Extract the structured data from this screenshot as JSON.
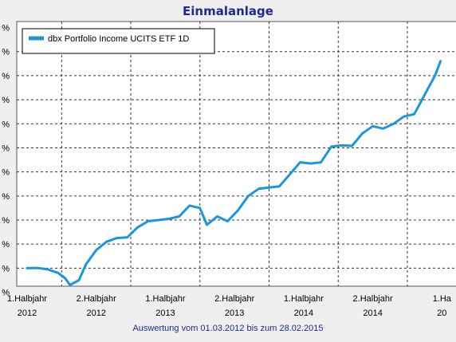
{
  "chart_data": {
    "type": "line",
    "title": "Einmalanlage",
    "footnote": "Auswertung vom 01.03.2012 bis zum 28.02.2015",
    "legend": {
      "placement": "top-left",
      "entries": [
        "dbx Portfolio Income UCITS ETF 1D"
      ]
    },
    "x_ticks": [
      [
        "1.Halbjahr",
        "2012"
      ],
      [
        "2.Halbjahr",
        "2012"
      ],
      [
        "1.Halbjahr",
        "2013"
      ],
      [
        "2.Halbjahr",
        "2013"
      ],
      [
        "1.Halbjahr",
        "2014"
      ],
      [
        "2.Halbjahr",
        "2014"
      ],
      [
        "1.Ha",
        "20"
      ]
    ],
    "y_ticks": [
      "%",
      "%",
      "%",
      "%",
      "%",
      "%",
      "%",
      "%",
      "%",
      "%",
      "%",
      "%"
    ],
    "grid": true,
    "series": [
      {
        "name": "dbx Portfolio Income UCITS ETF 1D",
        "color": "#1a96e0",
        "points": [
          [
            0.0,
            1.0
          ],
          [
            0.15,
            1.01
          ],
          [
            0.3,
            0.95
          ],
          [
            0.45,
            0.8
          ],
          [
            0.55,
            0.58
          ],
          [
            0.62,
            0.3
          ],
          [
            0.75,
            0.5
          ],
          [
            0.85,
            1.15
          ],
          [
            1.0,
            1.75
          ],
          [
            1.15,
            2.1
          ],
          [
            1.3,
            2.25
          ],
          [
            1.45,
            2.28
          ],
          [
            1.6,
            2.7
          ],
          [
            1.75,
            2.95
          ],
          [
            1.9,
            3.0
          ],
          [
            2.05,
            3.05
          ],
          [
            2.2,
            3.15
          ],
          [
            2.35,
            3.6
          ],
          [
            2.5,
            3.5
          ],
          [
            2.6,
            2.8
          ],
          [
            2.75,
            3.15
          ],
          [
            2.9,
            2.95
          ],
          [
            3.05,
            3.4
          ],
          [
            3.2,
            4.0
          ],
          [
            3.35,
            4.3
          ],
          [
            3.5,
            4.35
          ],
          [
            3.65,
            4.4
          ],
          [
            3.8,
            4.9
          ],
          [
            3.95,
            5.4
          ],
          [
            4.1,
            5.35
          ],
          [
            4.25,
            5.4
          ],
          [
            4.4,
            6.05
          ],
          [
            4.55,
            6.1
          ],
          [
            4.7,
            6.08
          ],
          [
            4.85,
            6.6
          ],
          [
            5.0,
            6.9
          ],
          [
            5.15,
            6.8
          ],
          [
            5.3,
            7.0
          ],
          [
            5.45,
            7.3
          ],
          [
            5.6,
            7.4
          ],
          [
            5.75,
            8.2
          ],
          [
            5.9,
            9.0
          ],
          [
            5.98,
            9.6
          ]
        ]
      }
    ],
    "xlim": [
      -0.15,
      6.25
    ],
    "ylim": [
      0.25,
      11.25
    ]
  }
}
